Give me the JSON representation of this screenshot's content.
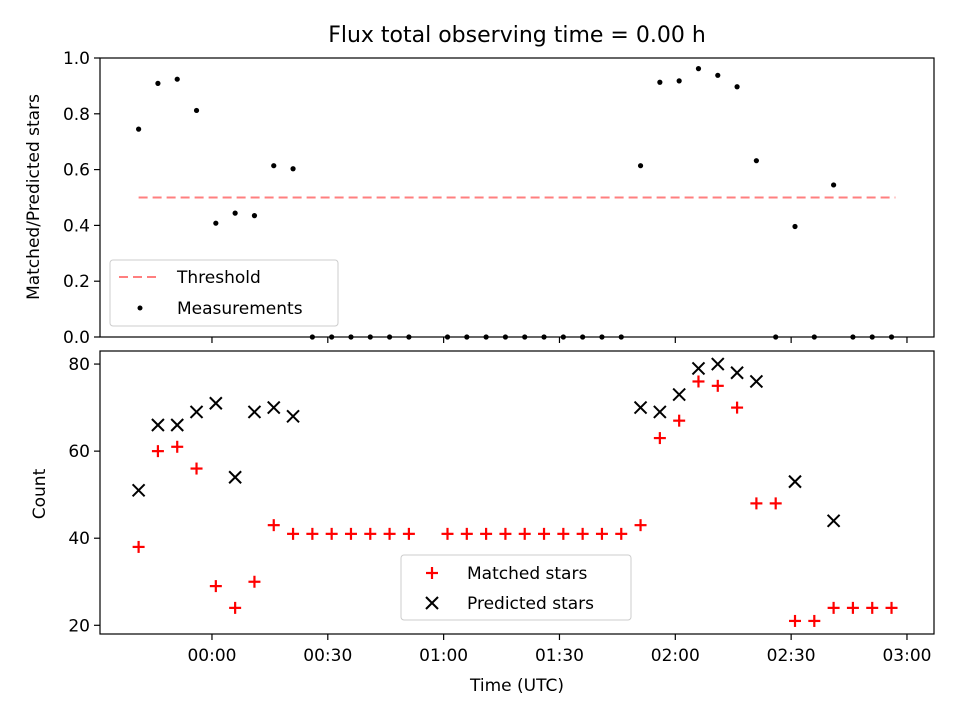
{
  "chart_data": [
    {
      "type": "scatter",
      "title": "Flux total observing time = 0.00 h",
      "xlabel": "",
      "ylabel": "Matched/Predicted stars",
      "xlim": [
        "23:31",
        "03:07"
      ],
      "ylim": [
        0,
        1.0
      ],
      "y_ticks": [
        "0.0",
        "0.2",
        "0.4",
        "0.6",
        "0.8",
        "1.0"
      ],
      "x_ticks": [
        "00:00",
        "00:30",
        "01:00",
        "01:30",
        "02:00",
        "02:30",
        "03:00"
      ],
      "tick_labels_shown": false,
      "legend_position": "lower-left",
      "legend": [
        "Threshold",
        "Measurements"
      ],
      "threshold": {
        "name": "Threshold",
        "value": 0.5,
        "x_range": [
          "23:41",
          "02:57"
        ],
        "color": "#ff7f7f"
      },
      "series": [
        {
          "name": "Measurements",
          "color": "#000000",
          "x": [
            "23:41",
            "23:46",
            "23:51",
            "23:56",
            "00:01",
            "00:06",
            "00:11",
            "00:16",
            "00:21",
            "00:26",
            "00:31",
            "00:36",
            "00:41",
            "00:46",
            "00:51",
            "01:01",
            "01:06",
            "01:11",
            "01:16",
            "01:21",
            "01:26",
            "01:31",
            "01:36",
            "01:41",
            "01:46",
            "01:51",
            "01:56",
            "02:01",
            "02:06",
            "02:11",
            "02:16",
            "02:21",
            "02:26",
            "02:31",
            "02:36",
            "02:41",
            "02:46",
            "02:51",
            "02:56"
          ],
          "y": [
            0.745,
            0.909,
            0.924,
            0.812,
            0.408,
            0.444,
            0.435,
            0.614,
            0.603,
            0.0,
            0.0,
            0.0,
            0.0,
            0.0,
            0.0,
            0.0,
            0.0,
            0.0,
            0.0,
            0.0,
            0.0,
            0.0,
            0.0,
            0.0,
            0.0,
            0.614,
            0.913,
            0.918,
            0.962,
            0.938,
            0.897,
            0.632,
            0.0,
            0.396,
            0.0,
            0.545,
            0.0,
            0.0,
            0.0
          ]
        }
      ]
    },
    {
      "type": "scatter",
      "title": "",
      "xlabel": "Time (UTC)",
      "ylabel": "Count",
      "xlim": [
        "23:31",
        "03:07"
      ],
      "ylim": [
        18,
        83
      ],
      "y_ticks": [
        "20",
        "40",
        "60",
        "80"
      ],
      "x_ticks": [
        "00:00",
        "00:30",
        "01:00",
        "01:30",
        "02:00",
        "02:30",
        "03:00"
      ],
      "legend_position": "lower-center",
      "legend": [
        "Matched stars",
        "Predicted stars"
      ],
      "series": [
        {
          "name": "Matched stars",
          "marker": "plus",
          "color": "#ff0000",
          "x": [
            "23:41",
            "23:46",
            "23:51",
            "23:56",
            "00:01",
            "00:06",
            "00:11",
            "00:16",
            "00:21",
            "00:26",
            "00:31",
            "00:36",
            "00:41",
            "00:46",
            "00:51",
            "01:01",
            "01:06",
            "01:11",
            "01:16",
            "01:21",
            "01:26",
            "01:31",
            "01:36",
            "01:41",
            "01:46",
            "01:51",
            "01:56",
            "02:01",
            "02:06",
            "02:11",
            "02:16",
            "02:21",
            "02:26",
            "02:31",
            "02:36",
            "02:41",
            "02:46",
            "02:51",
            "02:56"
          ],
          "y": [
            38,
            60,
            61,
            56,
            29,
            24,
            30,
            43,
            41,
            41,
            41,
            41,
            41,
            41,
            41,
            41,
            41,
            41,
            41,
            41,
            41,
            41,
            41,
            41,
            41,
            43,
            63,
            67,
            76,
            75,
            70,
            48,
            48,
            21,
            21,
            24,
            24,
            24,
            24
          ]
        },
        {
          "name": "Predicted stars",
          "marker": "x",
          "color": "#000000",
          "x": [
            "23:41",
            "23:46",
            "23:51",
            "23:56",
            "00:01",
            "00:06",
            "00:11",
            "00:16",
            "00:21",
            "01:51",
            "01:56",
            "02:01",
            "02:06",
            "02:11",
            "02:16",
            "02:21",
            "02:31",
            "02:41"
          ],
          "y": [
            51,
            66,
            66,
            69,
            71,
            54,
            69,
            70,
            68,
            70,
            69,
            73,
            79,
            80,
            78,
            76,
            53,
            44
          ]
        }
      ]
    }
  ]
}
